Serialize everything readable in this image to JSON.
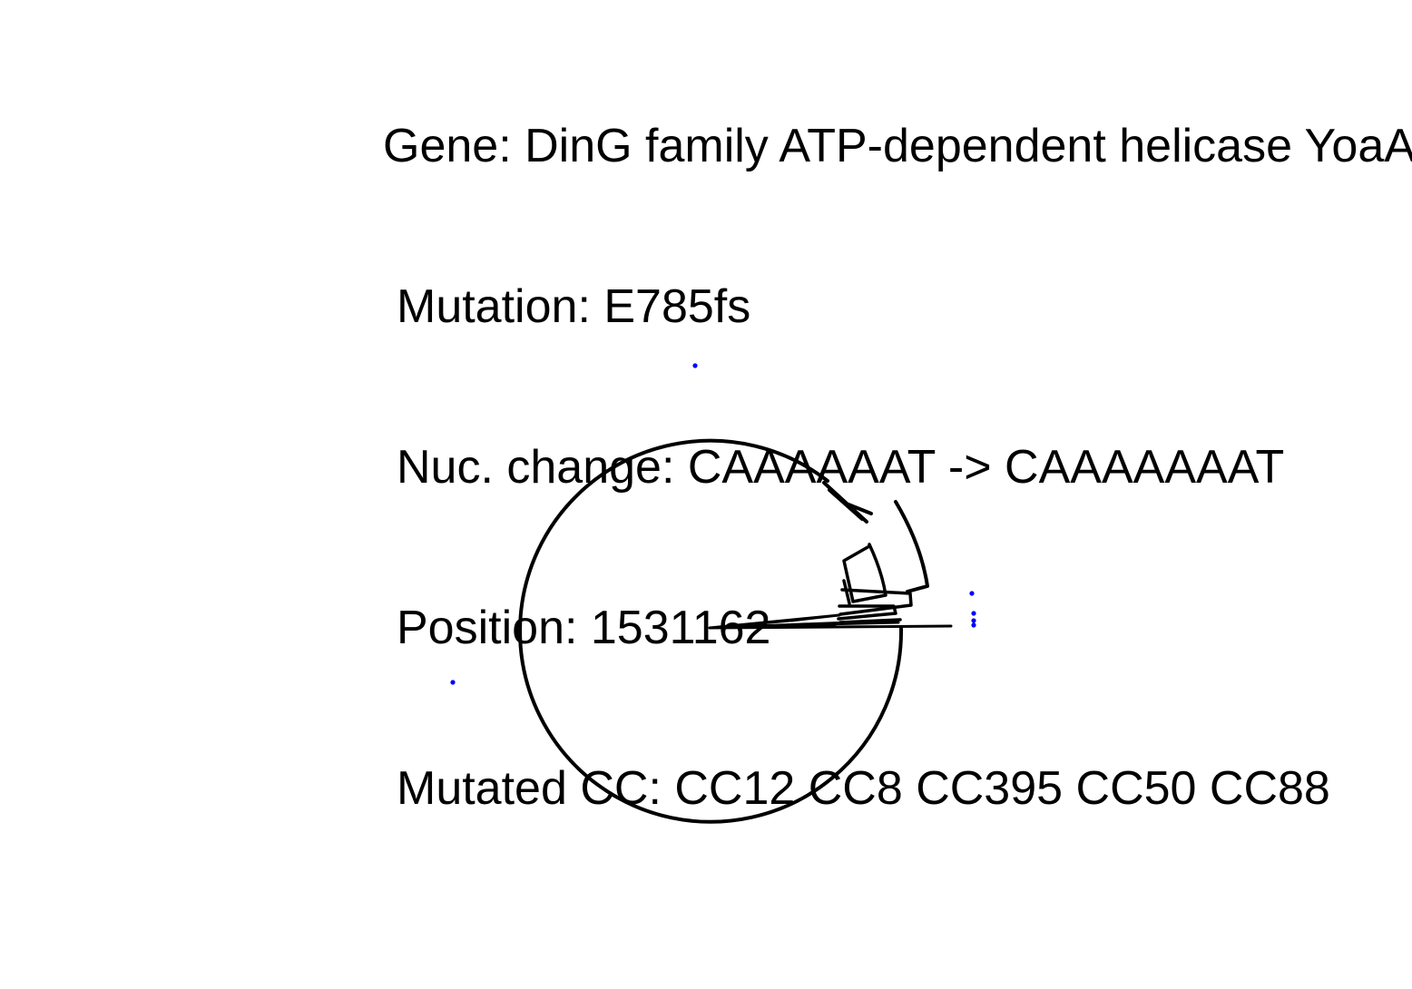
{
  "title": {
    "gene": "Gene: DinG family ATP-dependent helicase YoaA",
    "mutation": "Mutation: E785fs",
    "nuc_change": "Nuc. change: CAAAAAAT -> CAAAAAAAT",
    "position": "Position: 1531162",
    "mutated_cc": "Mutated CC: CC12 CC8 CC395 CC50 CC88"
  },
  "colors": {
    "branch": "#000000",
    "mutated_tip": "#0000ff",
    "background": "#ffffff"
  },
  "tree": {
    "layout": "circular",
    "mutated_tip_count": 6
  }
}
